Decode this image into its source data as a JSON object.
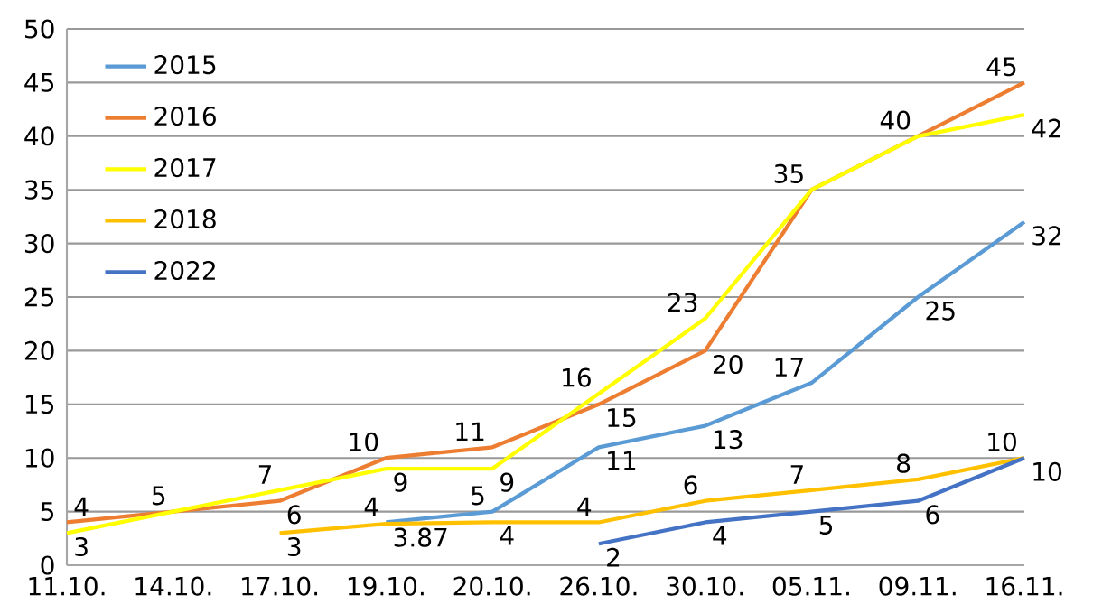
{
  "chart_data": {
    "type": "line",
    "categories": [
      "11.10.",
      "14.10.",
      "17.10.",
      "19.10.",
      "20.10.",
      "26.10.",
      "30.10.",
      "05.11.",
      "09.11.",
      "16.11."
    ],
    "series": [
      {
        "name": "2015",
        "color": "#5b9bd5",
        "values": [
          null,
          null,
          null,
          4,
          5,
          11,
          13,
          17,
          25,
          32
        ],
        "value_labels": [
          null,
          null,
          null,
          "4",
          "5",
          "11",
          "13",
          "17",
          "25",
          "32"
        ]
      },
      {
        "name": "2016",
        "color": "#ed7d31",
        "values": [
          4,
          5,
          6,
          10,
          11,
          15,
          20,
          35,
          40,
          45
        ],
        "value_labels": [
          "4",
          null,
          "6",
          "10",
          "11",
          "15",
          "20",
          null,
          null,
          "45"
        ]
      },
      {
        "name": "2017",
        "color": "#ffff00",
        "values": [
          3,
          5,
          7,
          9,
          9,
          16,
          23,
          35,
          40,
          42
        ],
        "value_labels": [
          "3",
          "5",
          "7",
          "9",
          "9",
          "16",
          "23",
          "35",
          "40",
          "42"
        ]
      },
      {
        "name": "2018",
        "color": "#ffc000",
        "values": [
          null,
          null,
          3,
          3.87,
          4,
          4,
          6,
          7,
          8,
          10
        ],
        "value_labels": [
          null,
          null,
          "3",
          "3.87",
          "4",
          "4",
          "6",
          "7",
          "8",
          "10"
        ]
      },
      {
        "name": "2022",
        "color": "#4472c4",
        "values": [
          null,
          null,
          null,
          null,
          null,
          2,
          4,
          5,
          6,
          10
        ],
        "value_labels": [
          null,
          null,
          null,
          null,
          null,
          "2",
          "4",
          "5",
          "6",
          "10"
        ]
      }
    ],
    "ylim": [
      0,
      50
    ],
    "yticks": [
      0,
      5,
      10,
      15,
      20,
      25,
      30,
      35,
      40,
      45,
      50
    ],
    "grid": "y",
    "legend": "top left",
    "marker": "none",
    "line_style": "solid"
  }
}
